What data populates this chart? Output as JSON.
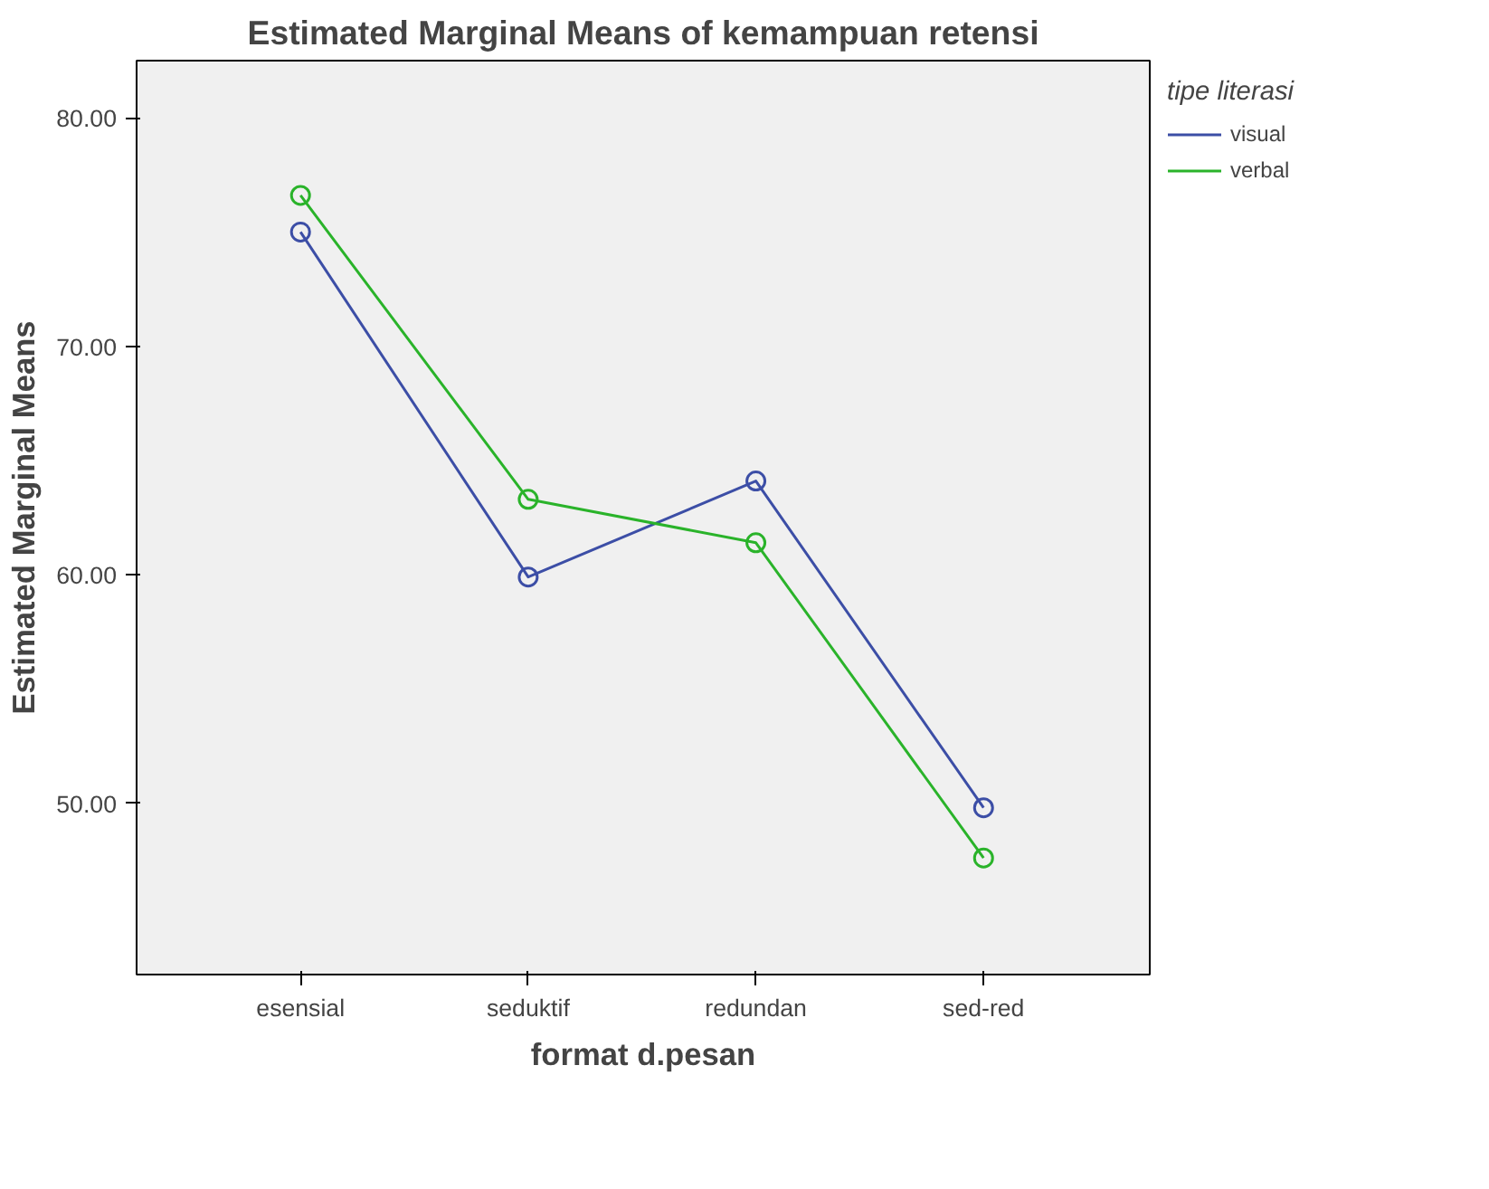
{
  "chart_data": {
    "type": "line",
    "title": "Estimated Marginal Means of kemampuan retensi",
    "xlabel": "format d.pesan",
    "ylabel": "Estimated Marginal Means",
    "legend_title": "tipe literasi",
    "categories": [
      "esensial",
      "seduktif",
      "redundan",
      "sed-red"
    ],
    "series": [
      {
        "name": "visual",
        "color": "#3c4ea6",
        "values": [
          75.0,
          59.9,
          64.1,
          49.8
        ]
      },
      {
        "name": "verbal",
        "color": "#2ab32a",
        "values": [
          76.6,
          63.3,
          61.4,
          47.6
        ]
      }
    ],
    "ylim": [
      42.5,
      82.5
    ],
    "yticks": [
      {
        "value": 50,
        "label": "50.00"
      },
      {
        "value": 60,
        "label": "60.00"
      },
      {
        "value": 70,
        "label": "70.00"
      },
      {
        "value": 80,
        "label": "80.00"
      }
    ],
    "grid": false,
    "legend": "top right",
    "marker": "circle",
    "line_style": "solid"
  }
}
